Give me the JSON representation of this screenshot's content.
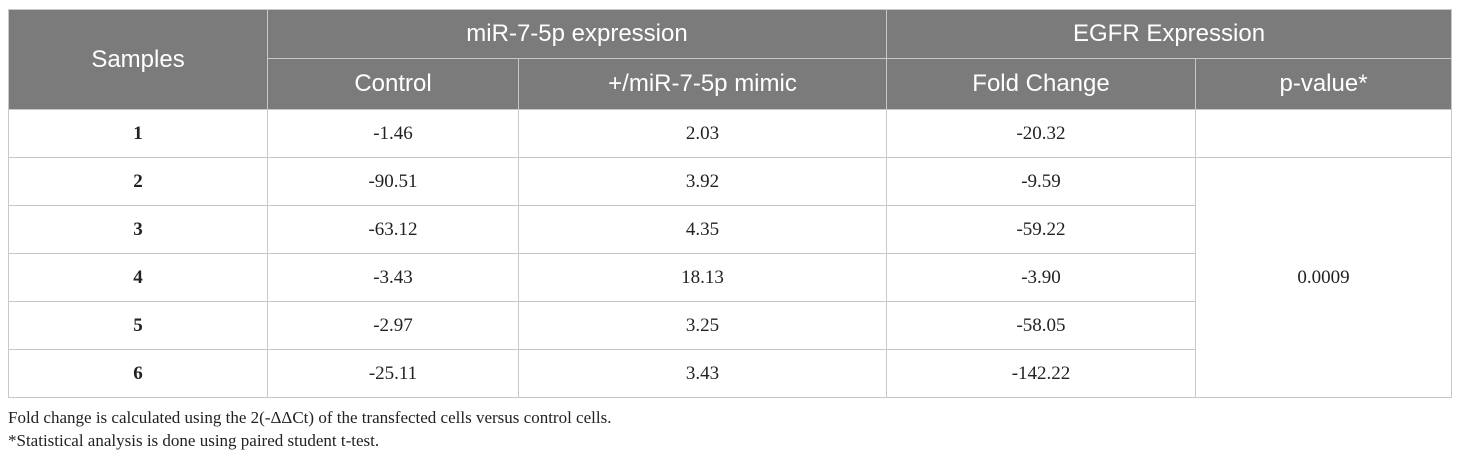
{
  "table": {
    "header": {
      "samples": "Samples",
      "group_mir": "miR-7-5p expression",
      "group_egfr": "EGFR Expression",
      "control": "Control",
      "mimic": "+/miR-7-5p mimic",
      "fold_change": "Fold Change",
      "p_value": "p-value*"
    },
    "rows": [
      {
        "sample": "1",
        "control": "-1.46",
        "mimic": "2.03",
        "fold_change": "-20.32"
      },
      {
        "sample": "2",
        "control": "-90.51",
        "mimic": "3.92",
        "fold_change": "-9.59"
      },
      {
        "sample": "3",
        "control": "-63.12",
        "mimic": "4.35",
        "fold_change": "-59.22"
      },
      {
        "sample": "4",
        "control": "-3.43",
        "mimic": "18.13",
        "fold_change": "-3.90"
      },
      {
        "sample": "5",
        "control": "-2.97",
        "mimic": "3.25",
        "fold_change": "-58.05"
      },
      {
        "sample": "6",
        "control": "-25.11",
        "mimic": "3.43",
        "fold_change": "-142.22"
      }
    ],
    "p_value_first": "",
    "p_value_merged": "0.0009"
  },
  "footnotes": [
    "Fold change is calculated using the 2(-ΔΔCt) of the transfected cells versus control cells.",
    "*Statistical analysis is done using paired student t-test."
  ]
}
